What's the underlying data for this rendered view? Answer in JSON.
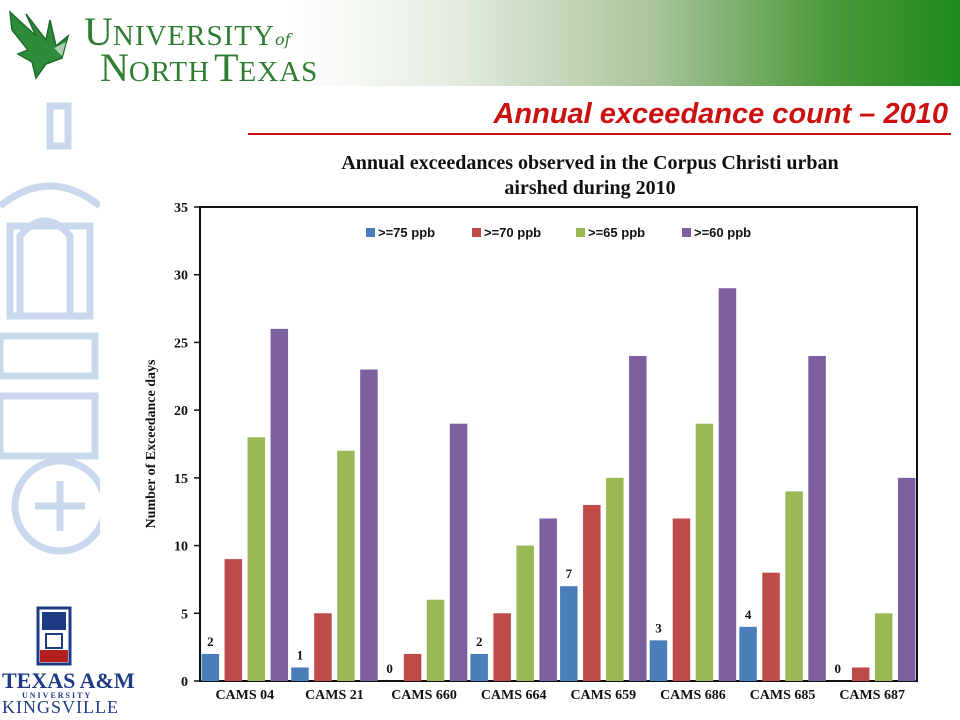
{
  "header": {
    "logo_line1_a": "U",
    "logo_line1_b": "NIVERSITY",
    "logo_of": "of",
    "logo_line2_a": "N",
    "logo_line2_b": "ORTH",
    "logo_line2_c": "T",
    "logo_line2_d": "EXAS",
    "slide_title": "Annual exceedance count – 2010"
  },
  "footer_logo": {
    "line1": "TEXAS A&M",
    "line2": "UNIVERSITY",
    "line3": "KINGSVILLE"
  },
  "colors": {
    "title_red": "#cc1111",
    "unt_green": "#2e7d32",
    "tamuk_blue": "#1f3b86"
  },
  "chart_data": {
    "type": "bar",
    "title_line1": "Annual exceedances observed in the Corpus Christi urban",
    "title_line2": "airshed during 2010",
    "xlabel": "",
    "ylabel": "Number of Exceedance days",
    "ylim": [
      0,
      35
    ],
    "yticks": [
      0,
      5,
      10,
      15,
      20,
      25,
      30,
      35
    ],
    "grid": false,
    "legend_position": "top-center",
    "categories": [
      "CAMS 04",
      "CAMS 21",
      "CAMS 660",
      "CAMS 664",
      "CAMS 659",
      "CAMS 686",
      "CAMS 685",
      "CAMS 687"
    ],
    "series": [
      {
        "name": ">=75 ppb",
        "color": "#4a7ebb",
        "values": [
          2,
          1,
          0,
          2,
          7,
          3,
          4,
          0
        ]
      },
      {
        "name": ">=70 ppb",
        "color": "#be4b48",
        "values": [
          9,
          5,
          2,
          5,
          13,
          12,
          8,
          1
        ]
      },
      {
        "name": ">=65 ppb",
        "color": "#98b954",
        "values": [
          18,
          17,
          6,
          10,
          15,
          19,
          14,
          5
        ]
      },
      {
        "name": ">=60 ppb",
        "color": "#7d60a0",
        "values": [
          26,
          23,
          19,
          12,
          24,
          29,
          24,
          15
        ]
      }
    ],
    "data_labels_series": 0
  }
}
